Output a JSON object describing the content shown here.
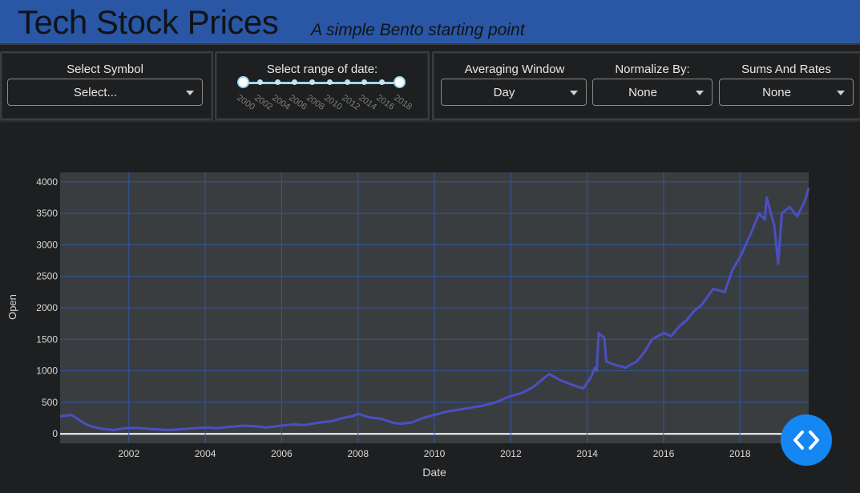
{
  "header": {
    "title": "Tech Stock Prices",
    "subtitle": "A simple Bento starting point",
    "background": "#2957a5"
  },
  "controls": {
    "symbol": {
      "label": "Select Symbol",
      "placeholder": "Select..."
    },
    "date_range": {
      "label": "Select range of date:",
      "years": [
        "2000",
        "2002",
        "2004",
        "2006",
        "2008",
        "2010",
        "2012",
        "2014",
        "2016",
        "2018"
      ]
    },
    "averaging": {
      "label": "Averaging Window",
      "value": "Day"
    },
    "normalize": {
      "label": "Normalize By:",
      "value": "None"
    },
    "sums": {
      "label": "Sums And Rates",
      "value": "None"
    }
  },
  "fab": {
    "icon": "code-brackets-icon",
    "color": "#1487f2"
  },
  "chart_data": {
    "type": "line",
    "title": "",
    "xlabel": "Date",
    "ylabel": "Open",
    "xlim": [
      2000.2,
      2019.8
    ],
    "ylim": [
      -150,
      4150
    ],
    "x_ticks": [
      "2002",
      "2004",
      "2006",
      "2008",
      "2010",
      "2012",
      "2014",
      "2016",
      "2018"
    ],
    "y_ticks": [
      "0",
      "500",
      "1000",
      "1500",
      "2000",
      "2500",
      "3000",
      "3500",
      "4000"
    ],
    "grid": true,
    "line_color": "#4a4fc4",
    "series": [
      {
        "x": [
          2000.2,
          2000.5,
          2000.8,
          2001.0,
          2001.3,
          2001.6,
          2001.9,
          2002.2,
          2002.5,
          2002.8,
          2003.0,
          2003.3,
          2003.6,
          2004.0,
          2004.3,
          2004.6,
          2005.0,
          2005.3,
          2005.6,
          2006.0,
          2006.3,
          2006.6,
          2007.0,
          2007.3,
          2007.6,
          2007.9,
          2008.0,
          2008.3,
          2008.6,
          2008.9,
          2009.1,
          2009.4,
          2009.7,
          2010.0,
          2010.3,
          2010.6,
          2011.0,
          2011.3,
          2011.6,
          2012.0,
          2012.3,
          2012.6,
          2012.8,
          2013.0,
          2013.3,
          2013.6,
          2013.9,
          2014.1,
          2014.2,
          2014.25,
          2014.3,
          2014.45,
          2014.5,
          2014.7,
          2015.0,
          2015.3,
          2015.5,
          2015.7,
          2016.0,
          2016.2,
          2016.4,
          2016.6,
          2016.8,
          2017.0,
          2017.3,
          2017.6,
          2017.8,
          2018.0,
          2018.3,
          2018.5,
          2018.65,
          2018.7,
          2018.9,
          2019.0,
          2019.1,
          2019.3,
          2019.5,
          2019.7,
          2019.8
        ],
        "y": [
          280,
          300,
          180,
          120,
          80,
          60,
          90,
          95,
          80,
          70,
          60,
          70,
          85,
          100,
          90,
          110,
          130,
          120,
          100,
          130,
          150,
          140,
          180,
          200,
          250,
          290,
          320,
          260,
          240,
          180,
          160,
          180,
          250,
          300,
          350,
          380,
          420,
          450,
          500,
          600,
          650,
          750,
          850,
          950,
          850,
          780,
          720,
          900,
          1050,
          1000,
          1600,
          1520,
          1150,
          1100,
          1050,
          1150,
          1300,
          1500,
          1600,
          1550,
          1700,
          1800,
          1950,
          2050,
          2300,
          2250,
          2600,
          2800,
          3200,
          3500,
          3400,
          3750,
          3300,
          2700,
          3500,
          3600,
          3450,
          3700,
          3900
        ]
      }
    ]
  }
}
